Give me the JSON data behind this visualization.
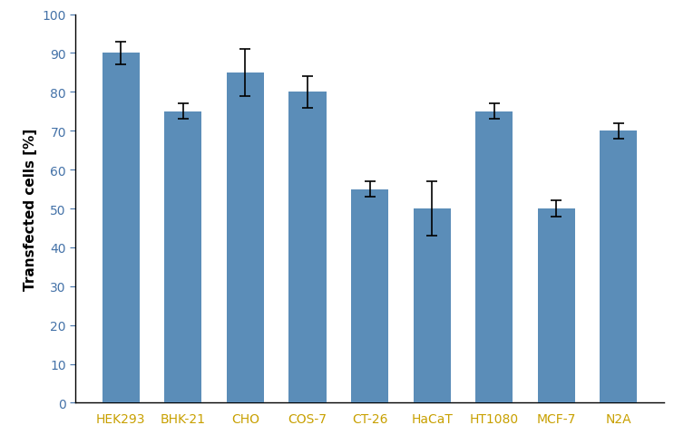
{
  "categories": [
    "HEK293",
    "BHK-21",
    "CHO",
    "COS-7",
    "CT-26",
    "HaCaT",
    "HT1080",
    "MCF-7",
    "N2A"
  ],
  "values": [
    90,
    75,
    85,
    80,
    55,
    50,
    75,
    50,
    70
  ],
  "errors": [
    3,
    2,
    6,
    4,
    2,
    7,
    2,
    2,
    2
  ],
  "bar_color": "#5b8db8",
  "ylabel": "Transfected cells [%]",
  "ylim": [
    0,
    100
  ],
  "yticks": [
    0,
    10,
    20,
    30,
    40,
    50,
    60,
    70,
    80,
    90,
    100
  ],
  "background_color": "#ffffff",
  "bar_width": 0.6,
  "xlabel_color": "#c8a000",
  "ytick_color": "#4472a8",
  "ylabel_fontsize": 11,
  "xlabel_fontsize": 10,
  "ytick_fontsize": 10,
  "capsize": 4,
  "elinewidth": 1.2,
  "capthick": 1.2
}
